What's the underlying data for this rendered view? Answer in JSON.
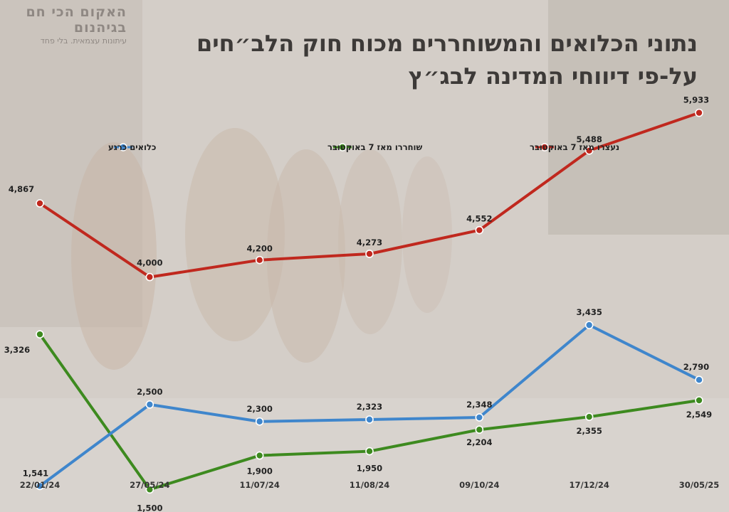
{
  "brand": {
    "title": "האקום הכי חם בגיהנום",
    "subtitle": "עיתונות עצמאית. בלי פחד"
  },
  "title_line1": "נתוני הכלואים והמשוחררים מכוח חוק הלב״חים",
  "title_line2": "על-פי דיווחי המדינה לבג״ץ",
  "chart_data": {
    "type": "line",
    "categories": [
      "22/01/24",
      "27/05/24",
      "11/07/24",
      "11/08/24",
      "09/10/24",
      "17/12/24",
      "30/05/25"
    ],
    "ylim": [
      1000,
      6500
    ],
    "grid": false,
    "legend_placement": "top",
    "series": [
      {
        "name": "נעצרו מאז 7 באוקטובר",
        "color": "#c0281e",
        "values": [
          4867,
          4000,
          4200,
          4273,
          4552,
          5488,
          5933
        ],
        "labels": [
          "4,867",
          "4,000",
          "4,200",
          "4,273",
          "4,552",
          "5,488",
          "5,933"
        ]
      },
      {
        "name": "שוחררו מאז 7 באוקטובר",
        "color": "#3d8a1f",
        "values": [
          3326,
          1500,
          1900,
          1950,
          2204,
          2355,
          2549
        ],
        "labels": [
          "3,326",
          "1,500",
          "1,900",
          "1,950",
          "2,204",
          "2,355",
          "2,549"
        ]
      },
      {
        "name": "כלואים כרגע",
        "color": "#3f86cc",
        "values": [
          1541,
          2500,
          2300,
          2323,
          2348,
          3435,
          2790
        ],
        "labels": [
          "1,541",
          "2,500",
          "2,300",
          "2,323",
          "2,348",
          "3,435",
          "2,790"
        ]
      }
    ]
  }
}
